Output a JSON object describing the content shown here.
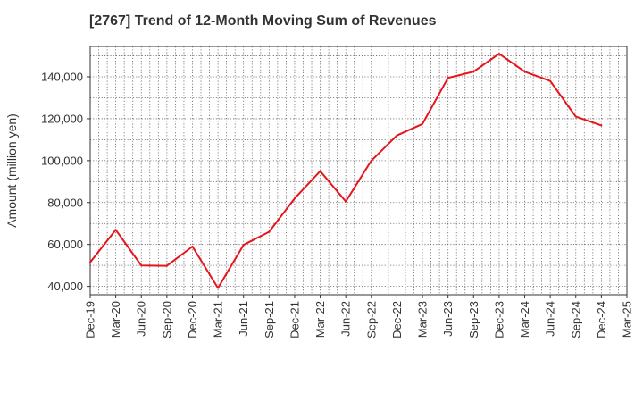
{
  "chart_data": {
    "type": "line",
    "title": "[2767]  Trend of 12-Month Moving Sum of Revenues",
    "xlabel": "",
    "ylabel": "Amount (million yen)",
    "categories": [
      "Dec-19",
      "Mar-20",
      "Jun-20",
      "Sep-20",
      "Dec-20",
      "Mar-21",
      "Jun-21",
      "Sep-21",
      "Dec-21",
      "Mar-22",
      "Jun-22",
      "Sep-22",
      "Dec-22",
      "Mar-23",
      "Jun-23",
      "Sep-23",
      "Dec-23",
      "Mar-24",
      "Jun-24",
      "Sep-24",
      "Dec-24",
      "Mar-25"
    ],
    "series": [
      {
        "name": "",
        "color": "#e8141c",
        "values": [
          51500,
          67000,
          50000,
          49800,
          59000,
          39200,
          59800,
          66000,
          82000,
          95000,
          80500,
          100000,
          112000,
          117500,
          139500,
          142500,
          151000,
          142500,
          138000,
          121000,
          116800,
          null
        ]
      }
    ],
    "yticks": [
      40000,
      60000,
      80000,
      100000,
      120000,
      140000
    ],
    "ytick_labels": [
      "40,000",
      "60,000",
      "80,000",
      "100,000",
      "120,000",
      "140,000"
    ],
    "ylim": [
      36000,
      154500
    ],
    "grid": true,
    "legend": "none"
  }
}
